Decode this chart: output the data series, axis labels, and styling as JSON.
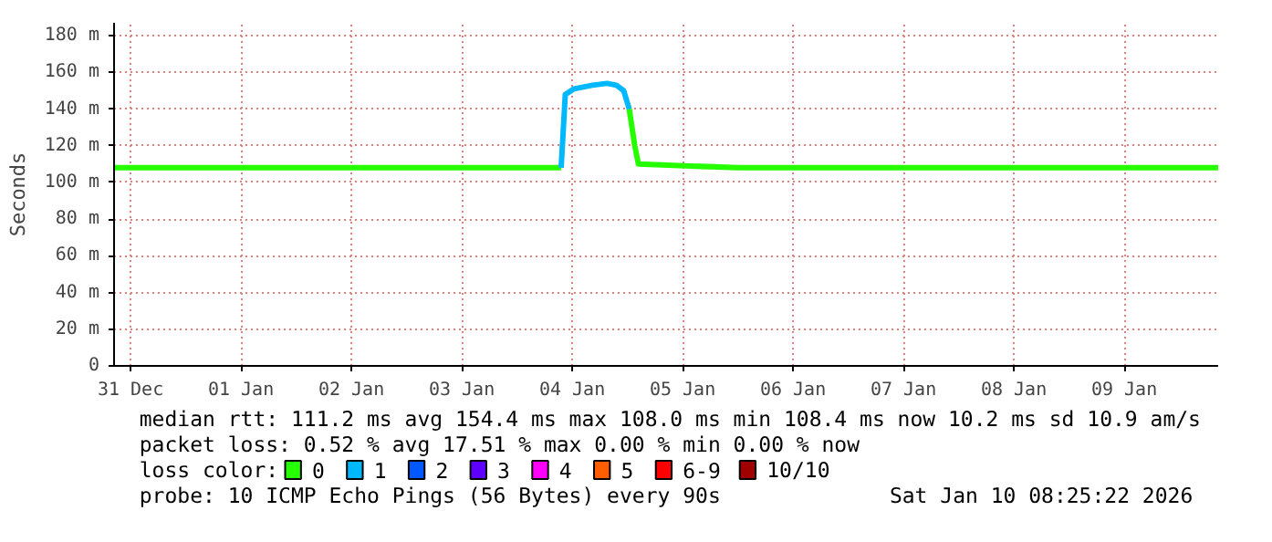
{
  "chart_data": {
    "type": "line",
    "ylabel": "Seconds",
    "legend_title": "loss color:",
    "legend": "bottom",
    "grid": true,
    "xlim": [
      "2025-12-31T08:25",
      "2026-01-10T08:25"
    ],
    "ylim": [
      0,
      187
    ],
    "xticks": [
      {
        "value": "2025-12-31T12:00",
        "label": "31 Dec"
      },
      {
        "value": "2026-01-01T12:00",
        "label": "01 Jan"
      },
      {
        "value": "2026-01-02T12:00",
        "label": "02 Jan"
      },
      {
        "value": "2026-01-03T12:00",
        "label": "03 Jan"
      },
      {
        "value": "2026-01-04T12:00",
        "label": "04 Jan"
      },
      {
        "value": "2026-01-05T12:00",
        "label": "05 Jan"
      },
      {
        "value": "2026-01-06T12:00",
        "label": "06 Jan"
      },
      {
        "value": "2026-01-07T12:00",
        "label": "07 Jan"
      },
      {
        "value": "2026-01-08T12:00",
        "label": "08 Jan"
      },
      {
        "value": "2026-01-09T12:00",
        "label": "09 Jan"
      }
    ],
    "yticks": [
      0,
      {
        "value": 20,
        "label": "20 m"
      },
      {
        "value": 40,
        "label": "40 m"
      },
      {
        "value": 60,
        "label": "60 m"
      },
      {
        "value": 80,
        "label": "80 m"
      },
      {
        "value": 100,
        "label": "100 m"
      },
      {
        "value": 120,
        "label": "120 m"
      },
      {
        "value": 140,
        "label": "140 m"
      },
      {
        "value": 160,
        "label": "160 m"
      },
      {
        "value": 180,
        "label": "180 m"
      }
    ],
    "series": [
      {
        "name": "0",
        "color": "#26ff00",
        "x": [
          "2025-12-31T08:25",
          "2026-01-01T00:00",
          "2026-01-02T00:00",
          "2026-01-03T00:00",
          "2026-01-04T00:00",
          "2026-01-04T09:36",
          null,
          "2026-01-05T00:24",
          "2026-01-05T01:36",
          "2026-01-05T02:24",
          "2026-01-06T00:00",
          "2026-01-07T00:00",
          "2026-01-08T00:00",
          "2026-01-09T00:00",
          "2026-01-10T08:25"
        ],
        "values": [
          108,
          108,
          108,
          108,
          108,
          108,
          null,
          140,
          120,
          110,
          108,
          108,
          108,
          108,
          108
        ]
      },
      {
        "name": "1",
        "color": "#00b8ff",
        "x": [
          "2026-01-04T09:36",
          "2026-01-04T10:30",
          "2026-01-04T12:24",
          "2026-01-04T16:24",
          "2026-01-04T19:36",
          "2026-01-04T21:36",
          "2026-01-04T23:12",
          "2026-01-05T00:24"
        ],
        "values": [
          108,
          148,
          151,
          153,
          154,
          153,
          150,
          140
        ]
      },
      {
        "name": "2",
        "color": "#0059ff"
      },
      {
        "name": "3",
        "color": "#5e00ff"
      },
      {
        "name": "4",
        "color": "#ff00ff"
      },
      {
        "name": "5",
        "color": "#ff5e00"
      },
      {
        "name": "6-9",
        "color": "#ff0000"
      },
      {
        "name": "10/10",
        "color": "#a10000"
      }
    ],
    "annotations": [
      "median rtt:  111.2 ms avg  154.4 ms max  108.0 ms min  108.4 ms now  10.2 ms sd  10.9   am/s",
      "packet loss: 0.52 % avg  17.51 % max  0.00 % min  0.00 % now",
      "probe:       10 ICMP Echo Pings (56 Bytes) every 90s",
      "Sat Jan 10 08:25:22 2026"
    ]
  }
}
